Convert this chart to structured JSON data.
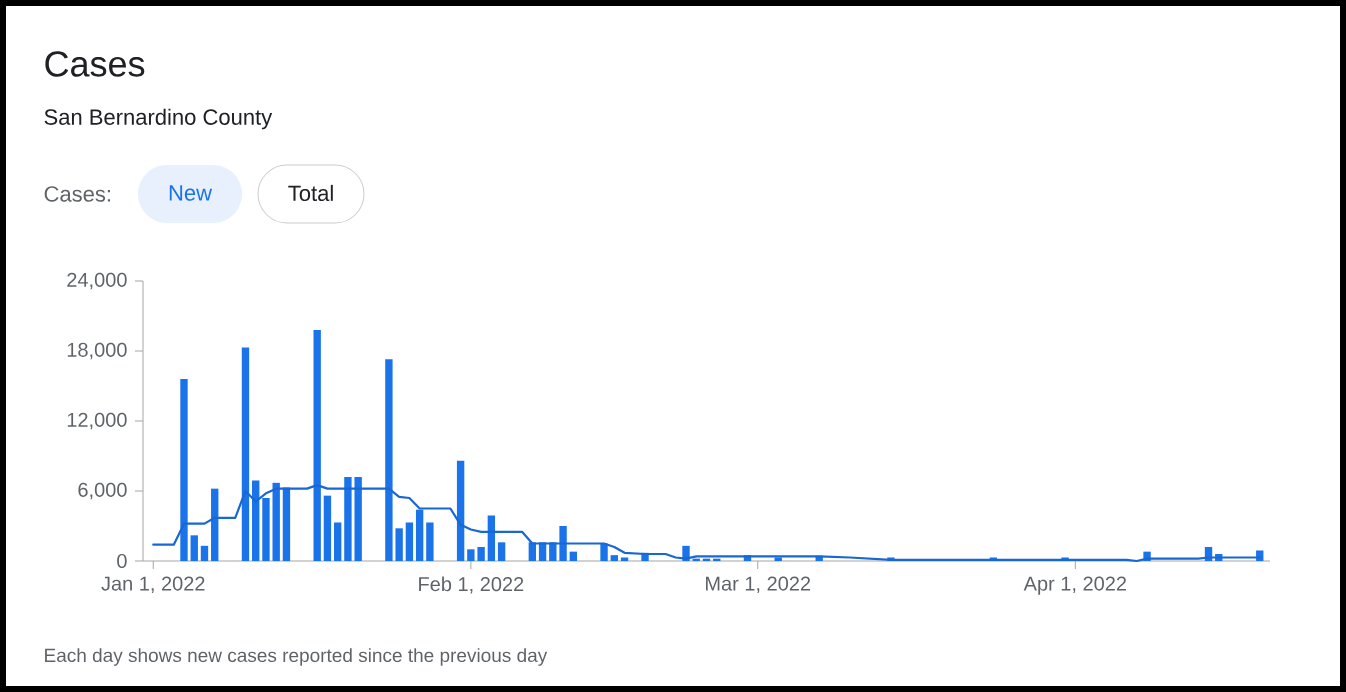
{
  "chart_data": {
    "type": "bar",
    "title": "Cases",
    "subtitle": "San Bernardino County",
    "annotations": [
      "Cases:",
      "New",
      "Total",
      "Each day shows new cases reported since the previous day"
    ],
    "xlim": [
      "2021-12-31",
      "2022-04-20"
    ],
    "xticks": [
      {
        "value": "2022-01-01",
        "label": "Jan 1, 2022"
      },
      {
        "value": "2022-02-01",
        "label": "Feb 1, 2022"
      },
      {
        "value": "2022-03-01",
        "label": "Mar 1, 2022"
      },
      {
        "value": "2022-04-01",
        "label": "Apr 1, 2022"
      }
    ],
    "ylim": [
      0,
      24000
    ],
    "yticks": [
      0,
      {
        "value": 6000,
        "label": "6,000"
      },
      {
        "value": 12000,
        "label": "12,000"
      },
      {
        "value": 18000,
        "label": "18,000"
      },
      {
        "value": 24000,
        "label": "24,000"
      }
    ],
    "series": [
      {
        "color": "#1a73e8",
        "x": [
          "2022-01-04",
          "2022-01-05",
          "2022-01-06",
          "2022-01-07",
          "2022-01-10",
          "2022-01-11",
          "2022-01-12",
          "2022-01-13",
          "2022-01-14",
          "2022-01-17",
          "2022-01-18",
          "2022-01-19",
          "2022-01-20",
          "2022-01-21",
          "2022-01-24",
          "2022-01-25",
          "2022-01-26",
          "2022-01-27",
          "2022-01-28",
          "2022-01-31",
          "2022-02-01",
          "2022-02-02",
          "2022-02-03",
          "2022-02-04",
          "2022-02-07",
          "2022-02-08",
          "2022-02-09",
          "2022-02-10",
          "2022-02-11",
          "2022-02-14",
          "2022-02-15",
          "2022-02-16",
          "2022-02-18",
          "2022-02-22",
          "2022-02-23",
          "2022-02-24",
          "2022-02-25",
          "2022-02-28",
          "2022-03-03",
          "2022-03-07",
          "2022-03-14",
          "2022-03-24",
          "2022-03-31",
          "2022-04-08",
          "2022-04-14",
          "2022-04-15",
          "2022-04-19"
        ],
        "values": [
          15600,
          2200,
          1300,
          6200,
          18300,
          6900,
          5400,
          6700,
          6300,
          19800,
          5600,
          3300,
          7200,
          7200,
          17300,
          2800,
          3300,
          4400,
          3300,
          8600,
          1000,
          1200,
          3900,
          1600,
          1600,
          1600,
          1600,
          3000,
          800,
          1500,
          500,
          300,
          700,
          1300,
          200,
          200,
          200,
          500,
          300,
          450,
          300,
          300,
          300,
          800,
          1200,
          600,
          900
        ]
      },
      {
        "type": "line",
        "color": "#1967d2",
        "marker": "none",
        "line_style": "solid",
        "x": [
          "2022-01-01",
          "2022-01-03",
          "2022-01-04",
          "2022-01-06",
          "2022-01-07",
          "2022-01-09",
          "2022-01-10",
          "2022-01-11",
          "2022-01-12",
          "2022-01-13",
          "2022-01-16",
          "2022-01-17",
          "2022-01-18",
          "2022-01-24",
          "2022-01-25",
          "2022-01-26",
          "2022-01-27",
          "2022-01-30",
          "2022-01-31",
          "2022-02-01",
          "2022-02-02",
          "2022-02-06",
          "2022-02-07",
          "2022-02-14",
          "2022-02-15",
          "2022-02-16",
          "2022-02-18",
          "2022-02-20",
          "2022-02-21",
          "2022-02-22",
          "2022-02-23",
          "2022-03-07",
          "2022-03-10",
          "2022-03-14",
          "2022-04-06",
          "2022-04-07",
          "2022-04-08",
          "2022-04-13",
          "2022-04-14",
          "2022-04-18",
          "2022-04-19"
        ],
        "values": [
          1400,
          1400,
          3200,
          3200,
          3700,
          3700,
          6000,
          5100,
          5800,
          6200,
          6200,
          6500,
          6200,
          6200,
          5500,
          5400,
          4500,
          4500,
          3100,
          2700,
          2500,
          2500,
          1500,
          1500,
          1200,
          700,
          600,
          600,
          300,
          200,
          400,
          400,
          300,
          100,
          100,
          0,
          200,
          200,
          300,
          300,
          300
        ]
      }
    ]
  }
}
